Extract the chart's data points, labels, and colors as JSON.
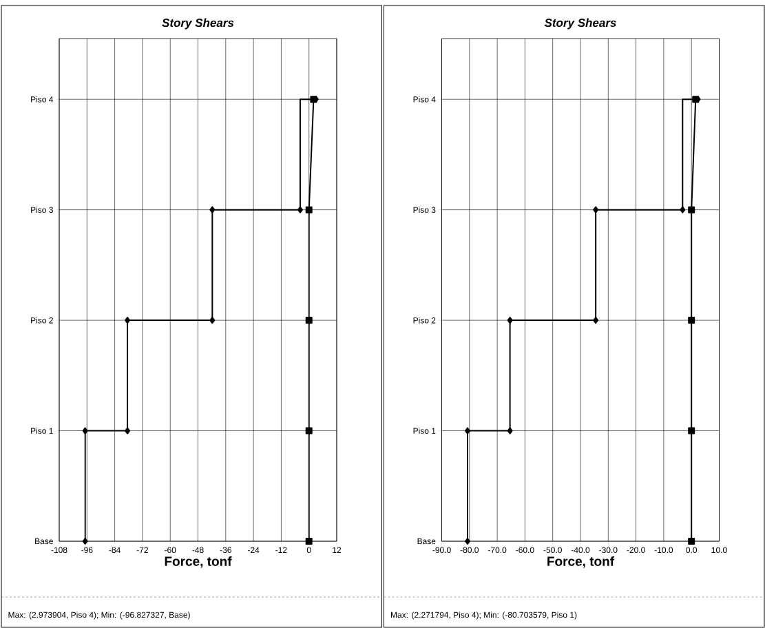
{
  "chart_data": [
    {
      "type": "line",
      "orientation": "horizontal",
      "title": "Story Shears",
      "xlabel": "Force, tonf",
      "xlim": [
        -108,
        12
      ],
      "xticks": [
        -108,
        -96,
        -84,
        -72,
        -60,
        -48,
        -36,
        -24,
        -12,
        0,
        12
      ],
      "categories": [
        "Piso 4",
        "Piso 3",
        "Piso 2",
        "Piso 1",
        "Base"
      ],
      "grid": true,
      "series": [
        {
          "type": "step",
          "color": "#000000",
          "marker": "diamond",
          "values": [
            3.0,
            -3.8,
            -41.8,
            -78.5,
            -96.8
          ]
        },
        {
          "type": "scatter",
          "color": "#000000",
          "marker": "diamond",
          "values": [
            null,
            -41.8,
            -78.5,
            -96.8,
            0
          ]
        },
        {
          "color": "#000000",
          "marker": "square",
          "values": [
            2.0,
            0,
            0,
            0,
            0
          ]
        }
      ],
      "annotations": [
        "Max: (2.973904, Piso 4);  Min: (-96.827327, Base)"
      ]
    },
    {
      "type": "line",
      "orientation": "horizontal",
      "title": "Story Shears",
      "xlabel": "Force, tonf",
      "xlim": [
        -90,
        10
      ],
      "xticks": [
        {
          "value": -90,
          "label": "-90.0"
        },
        {
          "value": -80,
          "label": "-80.0"
        },
        {
          "value": -70,
          "label": "-70.0"
        },
        {
          "value": -60,
          "label": "-60.0"
        },
        {
          "value": -50,
          "label": "-50.0"
        },
        {
          "value": -40,
          "label": "-40.0"
        },
        {
          "value": -30,
          "label": "-30.0"
        },
        {
          "value": -20,
          "label": "-20.0"
        },
        {
          "value": -10,
          "label": "-10.0"
        },
        {
          "value": 0,
          "label": "0.0"
        },
        {
          "value": 10,
          "label": "10.0"
        }
      ],
      "categories": [
        "Piso 4",
        "Piso 3",
        "Piso 2",
        "Piso 1",
        "Base"
      ],
      "grid": true,
      "series": [
        {
          "type": "step",
          "color": "#000000",
          "marker": "diamond",
          "values": [
            2.3,
            -3.2,
            -34.5,
            -65.4,
            -80.7
          ]
        },
        {
          "type": "scatter",
          "color": "#000000",
          "marker": "diamond",
          "values": [
            null,
            -34.5,
            -65.4,
            -80.7,
            0
          ]
        },
        {
          "color": "#000000",
          "marker": "square",
          "values": [
            1.5,
            0,
            0,
            0,
            0
          ]
        }
      ],
      "annotations": [
        "Max: (2.271794, Piso 4);  Min: (-80.703579, Piso 1)"
      ]
    }
  ]
}
